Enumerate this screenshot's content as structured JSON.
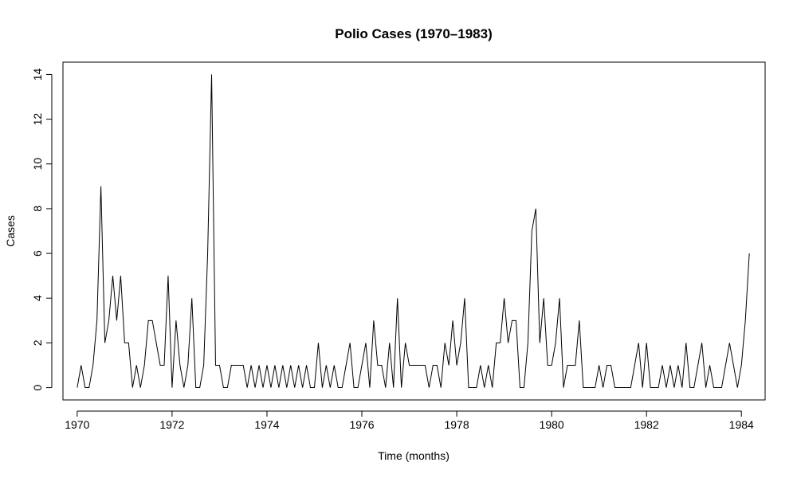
{
  "chart_data": {
    "type": "line",
    "title": "Polio Cases (1970–1983)",
    "xlabel": "Time (months)",
    "ylabel": "Cases",
    "xlim": [
      1969.7,
      1984.5
    ],
    "ylim": [
      -0.55,
      14.55
    ],
    "xticks": [
      1970,
      1972,
      1974,
      1976,
      1978,
      1980,
      1982,
      1984
    ],
    "yticks": [
      0,
      2,
      4,
      6,
      8,
      10,
      12,
      14
    ],
    "x_start": "1970-01",
    "frequency": "monthly",
    "grid": false,
    "line_color": "#000000",
    "series": [
      {
        "values": [
          0,
          1,
          0,
          0,
          1,
          3,
          9,
          2,
          3,
          5,
          3,
          5,
          2,
          2,
          0,
          1,
          0,
          1,
          3,
          3,
          2,
          1,
          1,
          5,
          0,
          3,
          1,
          0,
          1,
          4,
          0,
          0,
          1,
          6,
          14,
          1,
          1,
          0,
          0,
          1,
          1,
          1,
          1,
          0,
          1,
          0,
          1,
          0,
          1,
          0,
          1,
          0,
          1,
          0,
          1,
          0,
          1,
          0,
          1,
          0,
          0,
          2,
          0,
          1,
          0,
          1,
          0,
          0,
          1,
          2,
          0,
          0,
          1,
          2,
          0,
          3,
          1,
          1,
          0,
          2,
          0,
          4,
          0,
          2,
          1,
          1,
          1,
          1,
          1,
          0,
          1,
          1,
          0,
          2,
          1,
          3,
          1,
          2,
          4,
          0,
          0,
          0,
          1,
          0,
          1,
          0,
          2,
          2,
          4,
          2,
          3,
          3,
          0,
          0,
          2,
          7,
          8,
          2,
          4,
          1,
          1,
          2,
          4,
          0,
          1,
          1,
          1,
          3,
          0,
          0,
          0,
          0,
          1,
          0,
          1,
          1,
          0,
          0,
          0,
          0,
          0,
          1,
          2,
          0,
          2,
          0,
          0,
          0,
          1,
          0,
          1,
          0,
          1,
          0,
          2,
          0,
          0,
          1,
          2,
          0,
          1,
          0,
          0,
          0,
          1,
          2,
          1,
          0,
          1,
          3,
          6
        ]
      }
    ]
  }
}
